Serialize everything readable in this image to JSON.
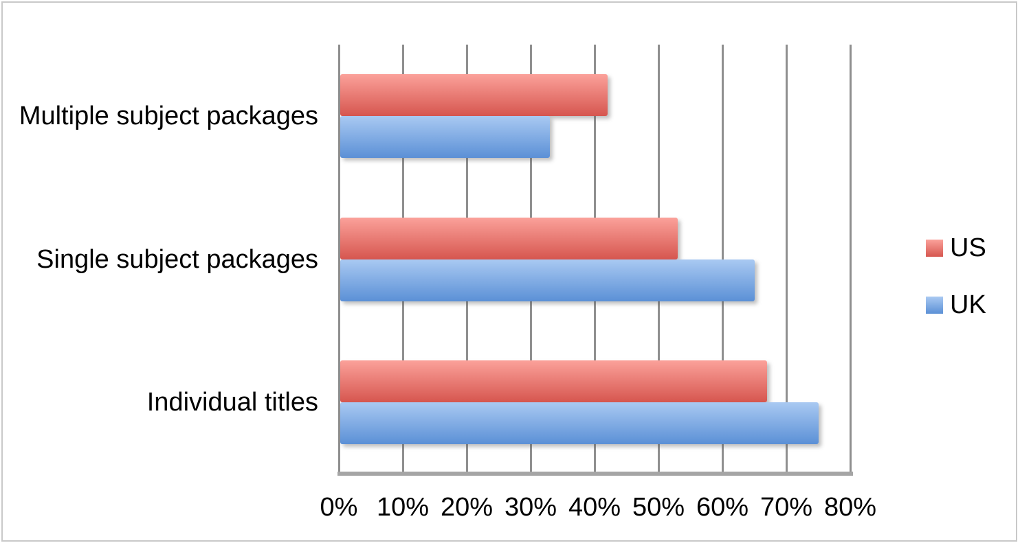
{
  "chart_data": {
    "type": "bar",
    "orientation": "horizontal",
    "title": "",
    "xlabel": "",
    "ylabel": "",
    "categories": [
      "Multiple subject packages",
      "Single subject packages",
      "Individual titles"
    ],
    "series": [
      {
        "name": "US",
        "values": [
          42,
          53,
          67
        ],
        "color_top": "#FBA19A",
        "color_bottom": "#D6564F"
      },
      {
        "name": "UK",
        "values": [
          33,
          65,
          75
        ],
        "color_top": "#A9C9F2",
        "color_bottom": "#5B90D6"
      }
    ],
    "x_ticks": [
      "0%",
      "10%",
      "20%",
      "30%",
      "40%",
      "50%",
      "60%",
      "70%",
      "80%"
    ],
    "x_tick_values": [
      0,
      10,
      20,
      30,
      40,
      50,
      60,
      70,
      80
    ],
    "xlim": [
      0,
      80
    ],
    "grid": "vertical-gridlines-on",
    "legend_position": "right",
    "colors": {
      "gridline": "#8f8f8f",
      "axis_line": "#a5a5a5",
      "text": "#000000",
      "background": "#ffffff",
      "canvas_border": "#c9c9c9"
    }
  }
}
